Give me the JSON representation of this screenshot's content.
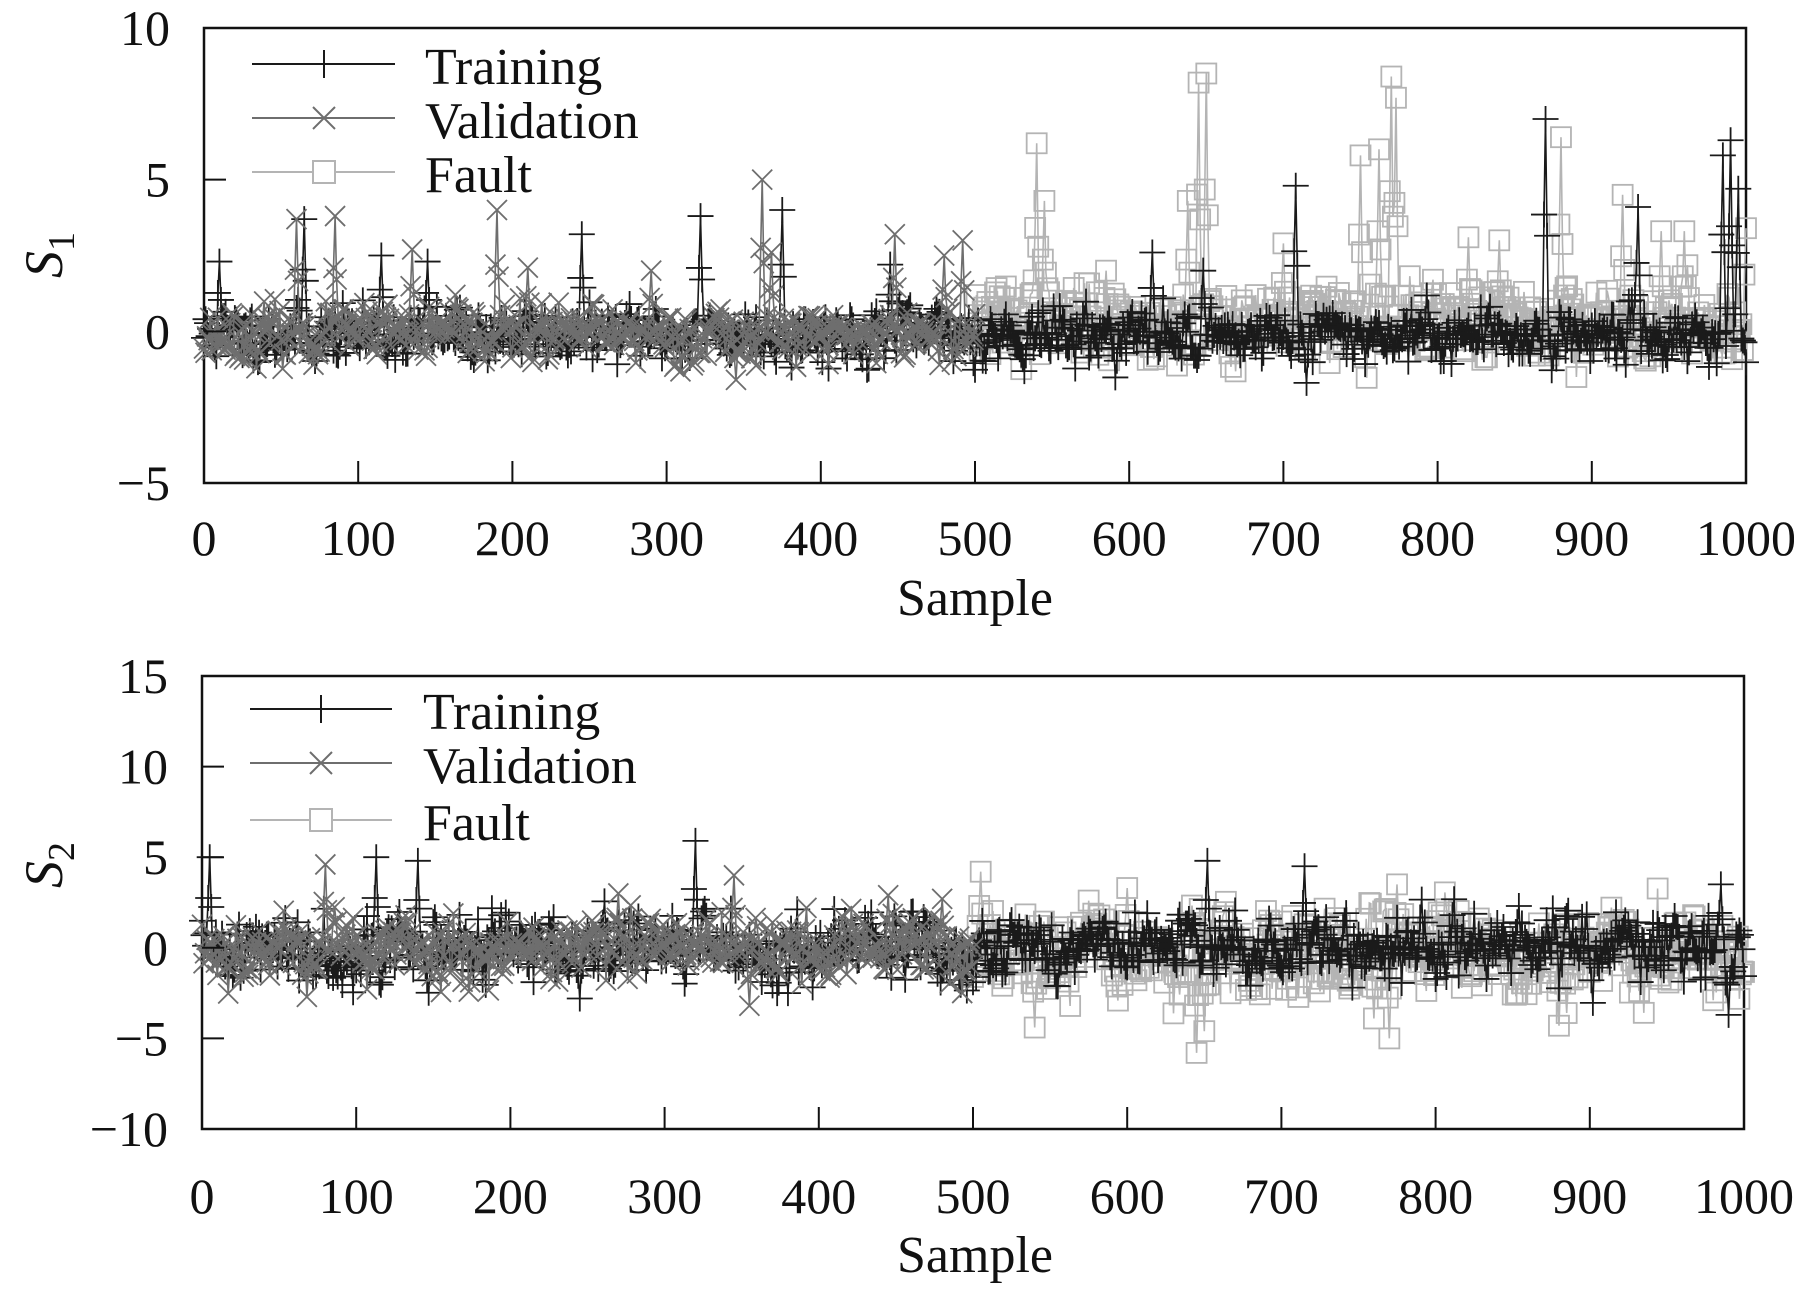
{
  "chart_data": [
    {
      "type": "line",
      "panel": "top",
      "title": "",
      "ylabel": "S",
      "ylabel_subscript": "1",
      "xlabel": "Sample",
      "xlim": [
        0,
        1000
      ],
      "ylim": [
        -5,
        10
      ],
      "xticks": [
        0,
        100,
        200,
        300,
        400,
        500,
        600,
        700,
        800,
        900,
        1000
      ],
      "yticks": [
        -5,
        0,
        5,
        10
      ],
      "xtick_labels": [
        "0",
        "100",
        "200",
        "300",
        "400",
        "500",
        "600",
        "700",
        "800",
        "900",
        "1000"
      ],
      "ytick_labels": [
        "−5",
        "0",
        "5",
        "10"
      ],
      "legend_position": "top-left",
      "series": [
        {
          "name": "Training",
          "marker": "plus",
          "color": "#1a1a1a",
          "x_range": [
            0,
            1000
          ],
          "baseline_mean": -0.1,
          "noise": 0.42,
          "seed": 11,
          "spikes": [
            [
              10,
              2.3
            ],
            [
              65,
              3.7
            ],
            [
              115,
              2.5
            ],
            [
              145,
              2.3
            ],
            [
              245,
              3.2
            ],
            [
              322,
              3.8
            ],
            [
              375,
              4.0
            ],
            [
              445,
              2.2
            ],
            [
              615,
              2.6
            ],
            [
              648,
              2.0
            ],
            [
              708,
              4.8
            ],
            [
              715,
              -1.7
            ],
            [
              870,
              7.0
            ],
            [
              877,
              -0.9
            ],
            [
              930,
              4.1
            ],
            [
              985,
              5.8
            ],
            [
              990,
              6.3
            ],
            [
              995,
              4.7
            ]
          ]
        },
        {
          "name": "Validation",
          "marker": "x",
          "color": "#6e6e6e",
          "x_range": [
            0,
            500
          ],
          "baseline_mean": -0.1,
          "noise": 0.42,
          "seed": 23,
          "spikes": [
            [
              60,
              3.7
            ],
            [
              85,
              3.8
            ],
            [
              135,
              2.7
            ],
            [
              190,
              4.0
            ],
            [
              210,
              2.1
            ],
            [
              290,
              2.0
            ],
            [
              345,
              -1.6
            ],
            [
              362,
              5.0
            ],
            [
              368,
              2.6
            ],
            [
              448,
              3.2
            ],
            [
              480,
              2.5
            ],
            [
              492,
              3.0
            ]
          ]
        },
        {
          "name": "Fault",
          "marker": "square",
          "color": "#b4b4b4",
          "x_range": [
            500,
            1000
          ],
          "baseline_mean": 0.3,
          "noise": 0.6,
          "seed": 37,
          "spikes": [
            [
              540,
              6.2
            ],
            [
              545,
              4.3
            ],
            [
              585,
              2.0
            ],
            [
              638,
              4.3
            ],
            [
              645,
              8.2
            ],
            [
              650,
              8.5
            ],
            [
              700,
              2.9
            ],
            [
              750,
              5.8
            ],
            [
              762,
              6.0
            ],
            [
              770,
              8.4
            ],
            [
              773,
              7.7
            ],
            [
              820,
              3.1
            ],
            [
              840,
              3.0
            ],
            [
              880,
              6.4
            ],
            [
              920,
              4.5
            ],
            [
              945,
              3.3
            ],
            [
              960,
              3.3
            ],
            [
              1000,
              3.4
            ]
          ]
        }
      ]
    },
    {
      "type": "line",
      "panel": "bottom",
      "title": "",
      "ylabel": "S",
      "ylabel_subscript": "2",
      "xlabel": "Sample",
      "xlim": [
        0,
        1000
      ],
      "ylim": [
        -10,
        15
      ],
      "xticks": [
        0,
        100,
        200,
        300,
        400,
        500,
        600,
        700,
        800,
        900,
        1000
      ],
      "yticks": [
        -10,
        -5,
        0,
        5,
        10,
        15
      ],
      "xtick_labels": [
        "0",
        "100",
        "200",
        "300",
        "400",
        "500",
        "600",
        "700",
        "800",
        "900",
        "1000"
      ],
      "ytick_labels": [
        "−10",
        "−5",
        "0",
        "5",
        "10",
        "15"
      ],
      "legend_position": "top-left",
      "series": [
        {
          "name": "Training",
          "marker": "plus",
          "color": "#1a1a1a",
          "x_range": [
            0,
            1000
          ],
          "baseline_mean": 0.0,
          "noise": 0.9,
          "seed": 41,
          "spikes": [
            [
              5,
              5.0
            ],
            [
              113,
              5.0
            ],
            [
              140,
              4.8
            ],
            [
              245,
              -2.8
            ],
            [
              320,
              5.9
            ],
            [
              380,
              -2.5
            ],
            [
              652,
              4.8
            ],
            [
              715,
              4.5
            ],
            [
              985,
              3.5
            ],
            [
              990,
              -3.7
            ]
          ]
        },
        {
          "name": "Validation",
          "marker": "x",
          "color": "#6e6e6e",
          "x_range": [
            0,
            500
          ],
          "baseline_mean": 0.0,
          "noise": 0.9,
          "seed": 53,
          "spikes": [
            [
              80,
              4.6
            ],
            [
              270,
              3.0
            ],
            [
              345,
              4.0
            ],
            [
              355,
              -3.2
            ],
            [
              445,
              2.9
            ],
            [
              480,
              2.7
            ]
          ]
        },
        {
          "name": "Fault",
          "marker": "square",
          "color": "#b4b4b4",
          "x_range": [
            500,
            1000
          ],
          "baseline_mean": -0.5,
          "noise": 1.1,
          "seed": 67,
          "spikes": [
            [
              505,
              4.2
            ],
            [
              540,
              -4.4
            ],
            [
              600,
              3.3
            ],
            [
              645,
              -5.8
            ],
            [
              650,
              -4.6
            ],
            [
              760,
              -3.9
            ],
            [
              770,
              -5.0
            ],
            [
              775,
              3.5
            ],
            [
              880,
              -4.3
            ],
            [
              885,
              -3.6
            ]
          ]
        }
      ]
    }
  ]
}
